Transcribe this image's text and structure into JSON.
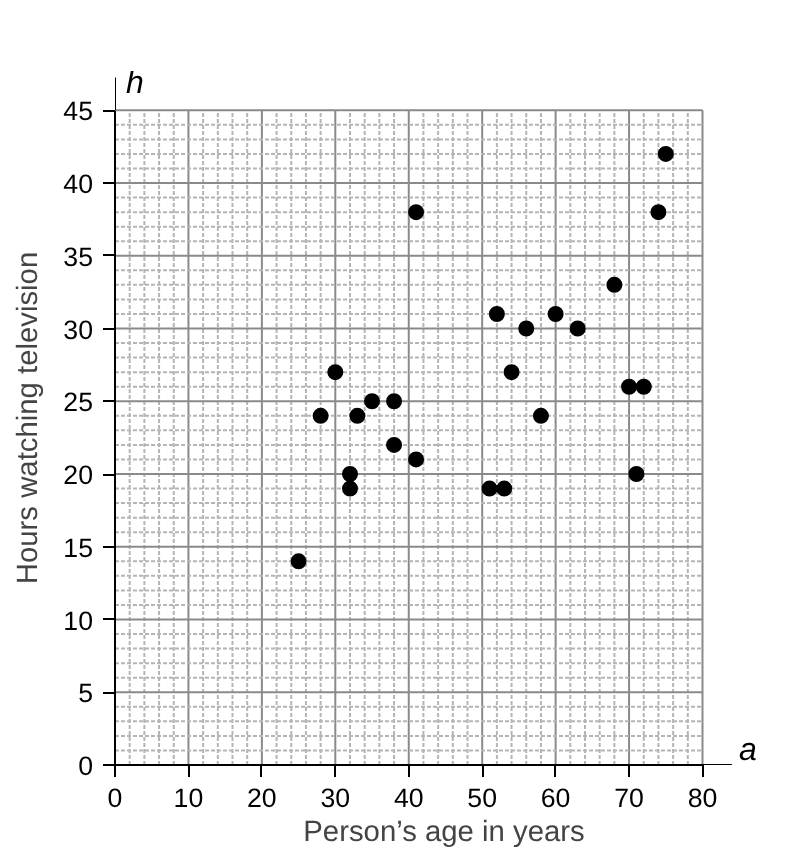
{
  "chart_data": {
    "type": "scatter",
    "xlabel": "Person’s age in years",
    "ylabel": "Hours watching television",
    "annotations": [
      "h",
      "a"
    ],
    "x": [
      25,
      28,
      30,
      32,
      32,
      33,
      35,
      38,
      38,
      41,
      41,
      51,
      52,
      53,
      54,
      56,
      58,
      60,
      63,
      68,
      70,
      71,
      72,
      74,
      75
    ],
    "series": [
      {
        "color": "#000000",
        "values": [
          14,
          24,
          27,
          20,
          19,
          24,
          25,
          25,
          22,
          21,
          38,
          19,
          31,
          19,
          27,
          30,
          24,
          31,
          30,
          33,
          26,
          20,
          26,
          38,
          42
        ]
      }
    ],
    "xlim": [
      0,
      80
    ],
    "ylim": [
      0,
      45
    ],
    "xticks": [
      0,
      10,
      20,
      30,
      40,
      50,
      60,
      70,
      80
    ],
    "yticks": [
      0,
      5,
      10,
      15,
      20,
      25,
      30,
      35,
      40,
      45
    ],
    "grid": true,
    "marker": "circle"
  }
}
